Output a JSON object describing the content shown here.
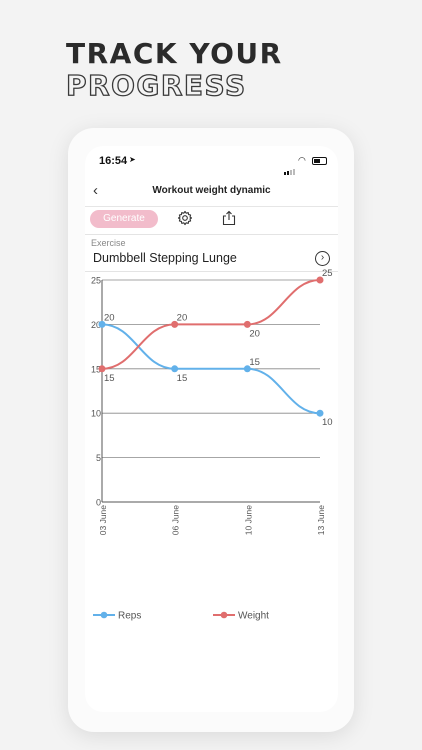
{
  "hero": {
    "line1": "TRACK YOUR",
    "line2": "PROGRESS"
  },
  "status_bar": {
    "time": "16:54",
    "location_icon": "location-arrow-icon"
  },
  "nav": {
    "title": "Workout weight dynamic",
    "back_icon": "chevron-left-icon"
  },
  "toolbar": {
    "generate_label": "Generate",
    "settings_icon": "gear-icon",
    "share_icon": "share-icon"
  },
  "exercise": {
    "label": "Exercise",
    "name": "Dumbbell Stepping Lunge"
  },
  "colors": {
    "reps": "#62b1ea",
    "weight": "#e06e6e",
    "generate_bg": "#f2bccb"
  },
  "chart_data": {
    "type": "line",
    "categories": [
      "03 June",
      "06 June",
      "10 June",
      "13 June"
    ],
    "series": [
      {
        "name": "Reps",
        "values": [
          20,
          15,
          15,
          10
        ]
      },
      {
        "name": "Weight",
        "values": [
          15,
          20,
          20,
          25
        ]
      }
    ],
    "ylim": [
      0,
      25
    ],
    "yticks": [
      0,
      5,
      10,
      15,
      20,
      25
    ],
    "grid": true,
    "legend": "bottom"
  }
}
